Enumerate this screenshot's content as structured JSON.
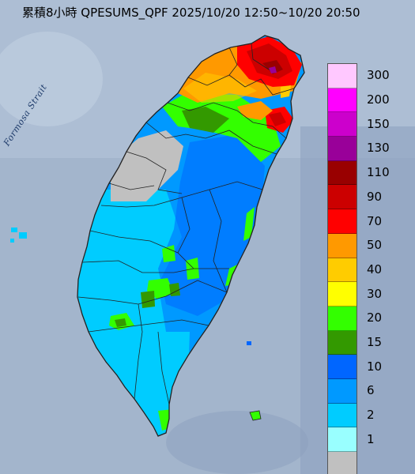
{
  "title": "累積8小時 QPESUMS_QPF 2025/10/20 12:50~10/20 20:50",
  "strait_label": "Formosa Strait",
  "legend": {
    "items": [
      {
        "label": "300",
        "color": "#ffc8ff"
      },
      {
        "label": "200",
        "color": "#ff00ff"
      },
      {
        "label": "150",
        "color": "#cc00cc"
      },
      {
        "label": "130",
        "color": "#990099"
      },
      {
        "label": "110",
        "color": "#990000"
      },
      {
        "label": "90",
        "color": "#cc0000"
      },
      {
        "label": "70",
        "color": "#ff0000"
      },
      {
        "label": "50",
        "color": "#ff9900"
      },
      {
        "label": "40",
        "color": "#ffcc00"
      },
      {
        "label": "30",
        "color": "#ffff00"
      },
      {
        "label": "20",
        "color": "#33ff00"
      },
      {
        "label": "15",
        "color": "#339900"
      },
      {
        "label": "10",
        "color": "#0066ff"
      },
      {
        "label": "6",
        "color": "#0099ff"
      },
      {
        "label": "2",
        "color": "#00ccff"
      },
      {
        "label": "1",
        "color": "#99ffff"
      },
      {
        "label": "",
        "color": "#c0c0c0"
      }
    ]
  }
}
